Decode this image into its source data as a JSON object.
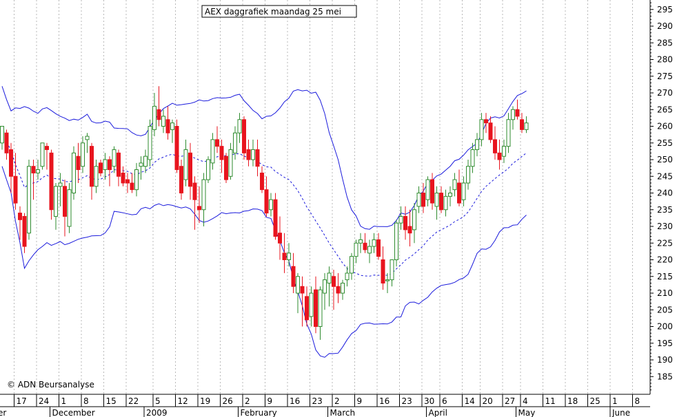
{
  "chart_data": {
    "type": "candlestick",
    "title": "AEX daggrafiek maandag 25 mei",
    "copyright": "© ADN Beursanalyse",
    "ylim": [
      180,
      298
    ],
    "y_ticks": [
      185,
      190,
      195,
      200,
      205,
      210,
      215,
      220,
      225,
      230,
      235,
      240,
      245,
      250,
      255,
      260,
      265,
      270,
      275,
      280,
      285,
      290,
      295
    ],
    "x_day_labels": [
      {
        "i": 3,
        "text": "17"
      },
      {
        "i": 8,
        "text": "24"
      },
      {
        "i": 13,
        "text": "1"
      },
      {
        "i": 18,
        "text": "8"
      },
      {
        "i": 23,
        "text": "15"
      },
      {
        "i": 28,
        "text": "22"
      },
      {
        "i": 34,
        "text": "5"
      },
      {
        "i": 39,
        "text": "12"
      },
      {
        "i": 44,
        "text": "19"
      },
      {
        "i": 49,
        "text": "26"
      },
      {
        "i": 54,
        "text": "2"
      },
      {
        "i": 59,
        "text": "9"
      },
      {
        "i": 64,
        "text": "16"
      },
      {
        "i": 69,
        "text": "23"
      },
      {
        "i": 74,
        "text": "2"
      },
      {
        "i": 79,
        "text": "9"
      },
      {
        "i": 84,
        "text": "16"
      },
      {
        "i": 89,
        "text": "23"
      },
      {
        "i": 94,
        "text": "30"
      },
      {
        "i": 98,
        "text": "6"
      },
      {
        "i": 103,
        "text": "14"
      },
      {
        "i": 107,
        "text": "20"
      },
      {
        "i": 112,
        "text": "27"
      },
      {
        "i": 116,
        "text": "4"
      },
      {
        "i": 121,
        "text": "11"
      },
      {
        "i": 126,
        "text": "18"
      },
      {
        "i": 131,
        "text": "25"
      },
      {
        "i": 136,
        "text": "1"
      },
      {
        "i": 141,
        "text": "8"
      }
    ],
    "x_month_labels": [
      {
        "i": -1,
        "text": "er"
      },
      {
        "i": 11,
        "text": "December"
      },
      {
        "i": 32,
        "text": "2009"
      },
      {
        "i": 53,
        "text": "February"
      },
      {
        "i": 73,
        "text": "March"
      },
      {
        "i": 95,
        "text": "April"
      },
      {
        "i": 115,
        "text": "May"
      },
      {
        "i": 136,
        "text": "June"
      }
    ],
    "candles": [
      [
        255,
        260,
        253,
        260
      ],
      [
        258,
        259,
        250,
        252
      ],
      [
        253,
        255,
        240,
        245
      ],
      [
        245,
        252,
        235,
        237
      ],
      [
        234,
        236,
        226,
        232
      ],
      [
        233,
        234,
        222,
        224
      ],
      [
        228,
        250,
        226,
        248
      ],
      [
        248,
        250,
        238,
        246
      ],
      [
        246,
        250,
        244,
        247
      ],
      [
        248,
        255,
        247,
        255
      ],
      [
        254,
        255,
        247,
        253
      ],
      [
        252,
        253,
        232,
        235
      ],
      [
        233,
        243,
        229,
        242
      ],
      [
        242,
        246,
        236,
        243
      ],
      [
        242,
        244,
        227,
        233
      ],
      [
        230,
        243,
        228,
        241
      ],
      [
        240,
        254,
        238,
        252
      ],
      [
        251,
        255,
        243,
        247
      ],
      [
        248,
        257,
        246,
        255
      ],
      [
        256,
        258,
        252,
        257
      ],
      [
        254,
        255,
        238,
        242
      ],
      [
        242,
        250,
        240,
        248
      ],
      [
        249,
        250,
        245,
        246
      ],
      [
        247,
        252,
        244,
        250
      ],
      [
        250,
        251,
        242,
        247
      ],
      [
        248,
        254,
        246,
        253
      ],
      [
        252,
        253,
        242,
        245
      ],
      [
        246,
        248,
        242,
        243
      ],
      [
        244,
        246,
        240,
        243
      ],
      [
        243,
        246,
        240,
        241
      ],
      [
        241,
        249,
        239,
        247
      ],
      [
        248,
        251,
        244,
        249
      ],
      [
        248,
        253,
        246,
        251
      ],
      [
        250,
        262,
        248,
        260
      ],
      [
        259,
        270,
        257,
        266
      ],
      [
        265,
        272,
        260,
        262
      ],
      [
        260,
        265,
        258,
        263
      ],
      [
        262,
        266,
        256,
        258
      ],
      [
        259,
        262,
        255,
        261
      ],
      [
        260,
        262,
        246,
        247
      ],
      [
        248,
        250,
        238,
        240
      ],
      [
        244,
        256,
        242,
        253
      ],
      [
        252,
        255,
        238,
        242
      ],
      [
        243,
        245,
        229,
        238
      ],
      [
        236,
        242,
        231,
        235
      ],
      [
        235,
        246,
        230,
        244
      ],
      [
        244,
        251,
        243,
        250
      ],
      [
        249,
        258,
        247,
        256
      ],
      [
        256,
        260,
        252,
        254
      ],
      [
        254,
        256,
        246,
        250
      ],
      [
        251,
        252,
        243,
        244
      ],
      [
        245,
        255,
        244,
        253
      ],
      [
        252,
        260,
        250,
        258
      ],
      [
        258,
        264,
        255,
        262
      ],
      [
        262,
        263,
        250,
        252
      ],
      [
        253,
        256,
        248,
        250
      ],
      [
        250,
        256,
        248,
        253
      ],
      [
        253,
        256,
        245,
        248
      ],
      [
        246,
        248,
        240,
        241
      ],
      [
        241,
        245,
        233,
        234
      ],
      [
        235,
        240,
        233,
        238
      ],
      [
        238,
        240,
        226,
        227
      ],
      [
        228,
        233,
        220,
        225
      ],
      [
        222,
        228,
        216,
        220
      ],
      [
        220,
        225,
        218,
        222
      ],
      [
        218,
        222,
        210,
        212
      ],
      [
        210,
        216,
        204,
        215
      ],
      [
        212,
        215,
        200,
        210
      ],
      [
        209,
        212,
        200,
        202
      ],
      [
        203,
        212,
        200,
        210
      ],
      [
        211,
        215,
        198,
        200
      ],
      [
        200,
        212,
        196,
        211
      ],
      [
        210,
        216,
        205,
        214
      ],
      [
        213,
        218,
        206,
        216
      ],
      [
        215,
        217,
        205,
        212
      ],
      [
        212,
        216,
        207,
        210
      ],
      [
        210,
        214,
        208,
        213
      ],
      [
        214,
        218,
        212,
        216
      ],
      [
        216,
        222,
        214,
        221
      ],
      [
        221,
        226,
        219,
        225
      ],
      [
        225,
        228,
        222,
        226
      ],
      [
        225,
        228,
        222,
        223
      ],
      [
        222,
        226,
        219,
        224
      ],
      [
        224,
        228,
        222,
        226
      ],
      [
        226,
        228,
        220,
        221
      ],
      [
        220,
        224,
        211,
        213
      ],
      [
        214,
        216,
        210,
        214
      ],
      [
        214,
        220,
        212,
        220
      ],
      [
        220,
        232,
        218,
        231
      ],
      [
        231,
        236,
        229,
        233
      ],
      [
        233,
        236,
        226,
        229
      ],
      [
        230,
        235,
        224,
        228
      ],
      [
        229,
        237,
        225,
        235
      ],
      [
        236,
        242,
        234,
        240
      ],
      [
        240,
        243,
        234,
        236
      ],
      [
        238,
        245,
        236,
        244
      ],
      [
        244,
        246,
        235,
        237
      ],
      [
        236,
        242,
        232,
        240
      ],
      [
        240,
        242,
        234,
        235
      ],
      [
        235,
        241,
        233,
        239
      ],
      [
        239,
        242,
        236,
        240
      ],
      [
        241,
        246,
        239,
        244
      ],
      [
        243,
        247,
        236,
        237
      ],
      [
        238,
        245,
        236,
        243
      ],
      [
        243,
        250,
        241,
        248
      ],
      [
        248,
        255,
        246,
        253
      ],
      [
        253,
        258,
        251,
        256
      ],
      [
        256,
        264,
        254,
        262
      ],
      [
        262,
        264,
        258,
        261
      ],
      [
        261,
        263,
        255,
        256
      ],
      [
        256,
        260,
        250,
        252
      ],
      [
        252,
        256,
        247,
        250
      ],
      [
        251,
        256,
        249,
        254
      ],
      [
        254,
        264,
        252,
        262
      ],
      [
        262,
        266,
        259,
        265
      ],
      [
        265,
        268,
        262,
        263
      ],
      [
        262,
        264,
        258,
        259
      ],
      [
        259,
        263,
        258,
        261
      ]
    ]
  }
}
